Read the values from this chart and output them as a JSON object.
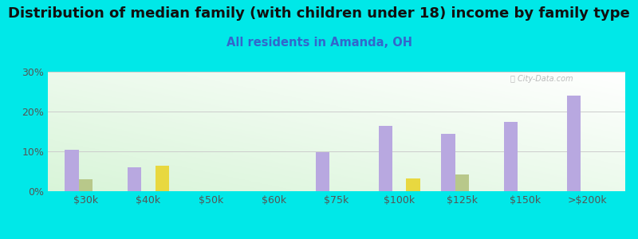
{
  "title": "Distribution of median family (with children under 18) income by family type",
  "subtitle": "All residents in Amanda, OH",
  "categories": [
    "$30k",
    "$40k",
    "$50k",
    "$60k",
    "$75k",
    "$100k",
    "$125k",
    "$150k",
    ">$200k"
  ],
  "series": {
    "Married couple": [
      10.5,
      6.0,
      0,
      0,
      9.8,
      16.5,
      14.5,
      17.5,
      24.0
    ],
    "Male, no wife": [
      3.0,
      0,
      0,
      0,
      0,
      0,
      4.2,
      0,
      0
    ],
    "Female, no husband": [
      0,
      6.5,
      0,
      0,
      0,
      3.2,
      0,
      0,
      0
    ]
  },
  "colors": {
    "Married couple": "#b8a8e0",
    "Male, no wife": "#b8c88a",
    "Female, no husband": "#e8d840"
  },
  "ylim": [
    0,
    30
  ],
  "yticks": [
    0,
    10,
    20,
    30
  ],
  "ytick_labels": [
    "0%",
    "10%",
    "20%",
    "30%"
  ],
  "background_outer": "#00e8e8",
  "grid_color": "#cccccc",
  "bar_width": 0.22,
  "title_fontsize": 13,
  "subtitle_fontsize": 10.5,
  "subtitle_color": "#3366cc"
}
